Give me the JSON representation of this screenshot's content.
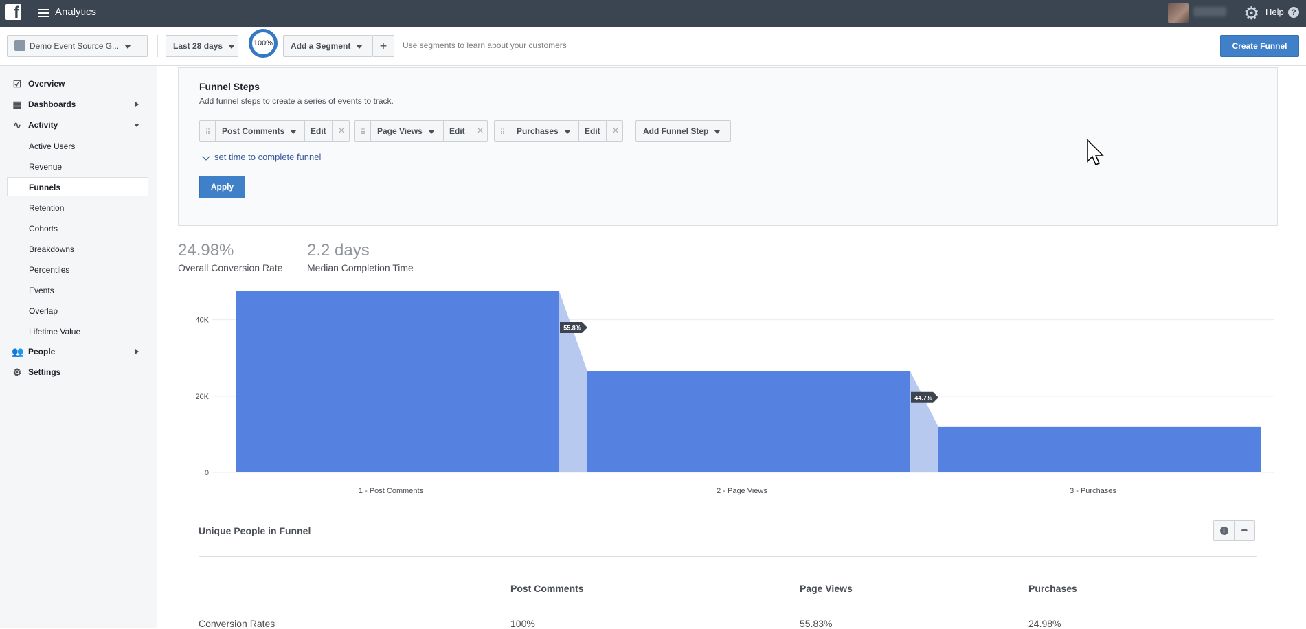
{
  "header": {
    "app_title": "Analytics",
    "help_label": "Help",
    "help_icon_char": "?"
  },
  "toolbar": {
    "source_label": "Demo Event Source G...",
    "date_range": "Last 28 days",
    "sampling": "100%",
    "add_segment": "Add a Segment",
    "add_plus": "+",
    "hint": "Use segments to learn about your customers",
    "create_funnel": "Create Funnel"
  },
  "sidebar": {
    "overview": "Overview",
    "dashboards": "Dashboards",
    "activity": "Activity",
    "activity_items": [
      "Active Users",
      "Revenue",
      "Funnels",
      "Retention",
      "Cohorts",
      "Breakdowns",
      "Percentiles",
      "Events",
      "Overlap",
      "Lifetime Value"
    ],
    "people": "People",
    "settings": "Settings"
  },
  "funnel_steps": {
    "title": "Funnel Steps",
    "subtitle": "Add funnel steps to create a series of events to track.",
    "steps": [
      "Post Comments",
      "Page Views",
      "Purchases"
    ],
    "edit_label": "Edit",
    "add_step": "Add Funnel Step",
    "time_link": "set time to complete funnel",
    "apply": "Apply"
  },
  "metrics": {
    "conversion_value": "24.98%",
    "conversion_label": "Overall Conversion Rate",
    "median_value": "2.2 days",
    "median_label": "Median Completion Time"
  },
  "chart_data": {
    "type": "bar",
    "categories": [
      "Post Comments",
      "Page Views",
      "Purchases"
    ],
    "category_labels": [
      "1 -    Post Comments",
      "2 -    Page Views",
      "3 - Purchases"
    ],
    "values": [
      47500,
      26500,
      11900
    ],
    "step_conversion_labels": [
      "55.8%",
      "44.7%"
    ],
    "yticks": [
      "0",
      "20K",
      "40K"
    ],
    "ytick_values": [
      0,
      20000,
      40000
    ],
    "ylim": [
      0,
      47500
    ],
    "bar_color": "#5581e0",
    "connector_color": "#b8c9f0",
    "grid": true
  },
  "table": {
    "title": "Unique People in Funnel",
    "info_icon": "i",
    "share_icon": "➦",
    "columns": [
      "Post Comments",
      "Page Views",
      "Purchases"
    ],
    "rows": [
      {
        "label": "Conversion Rates",
        "values": [
          "100%",
          "55.83%",
          "24.98%"
        ]
      }
    ]
  }
}
